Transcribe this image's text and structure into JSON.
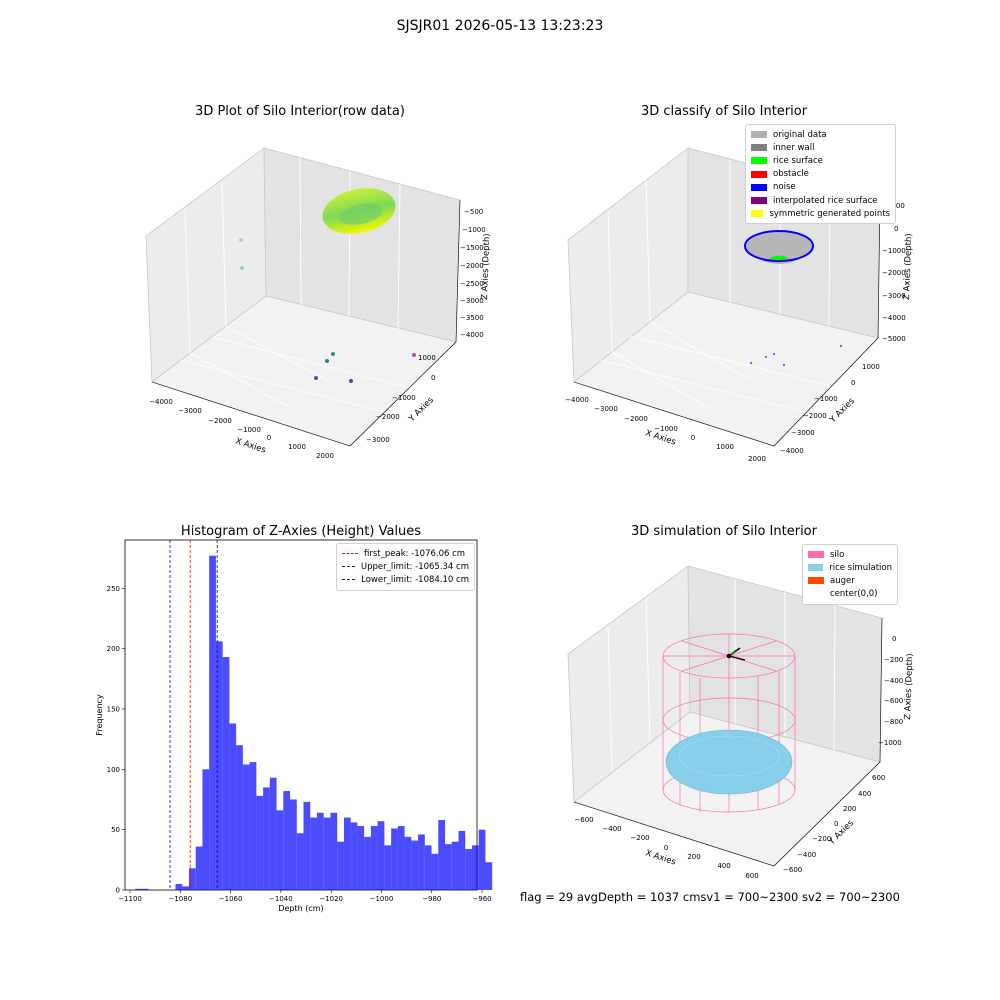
{
  "figure": {
    "suptitle": "SJSJR01 2026-05-13 13:23:23",
    "footer": "flag = 29  avgDepth = 1037 cmsv1 = 700~2300  sv2 = 700~2300"
  },
  "plot1": {
    "title": "3D Plot of Silo Interior(row data)",
    "xlabel": "X Axies",
    "ylabel": "Y Axies",
    "zlabel": "Z Axies (Depth)",
    "xticks": [
      "−4000",
      "−3000",
      "−2000",
      "−1000",
      "0",
      "1000",
      "2000"
    ],
    "yticks": [
      "1000",
      "0",
      "−1000",
      "−2000",
      "−3000"
    ],
    "zticks": [
      "−500",
      "−1000",
      "−1500",
      "−2000",
      "−2500",
      "−3000",
      "−3500",
      "−4000"
    ]
  },
  "plot2": {
    "title": "3D classify of Silo Interior",
    "xlabel": "X Axies",
    "ylabel": "Y Axies",
    "zlabel": "Z Axies (Depth)",
    "xticks": [
      "−4000",
      "−3000",
      "−2000",
      "−1000",
      "0",
      "1000",
      "2000"
    ],
    "yticks": [
      "1000",
      "0",
      "−1000",
      "−2000",
      "−3000",
      "−4000"
    ],
    "zticks": [
      "1000",
      "0",
      "−1000",
      "−2000",
      "−3000",
      "−4000",
      "−5000"
    ],
    "legend": [
      {
        "label": "original data",
        "color": "#b0b0b0"
      },
      {
        "label": "inner wall",
        "color": "#808080"
      },
      {
        "label": "rice surface",
        "color": "#00ff00"
      },
      {
        "label": "obstacle",
        "color": "#ff0000"
      },
      {
        "label": "noise",
        "color": "#0000ff"
      },
      {
        "label": "interpolated rice surface",
        "color": "#800080"
      },
      {
        "label": "symmetric generated points",
        "color": "#ffff00"
      }
    ]
  },
  "plot4": {
    "title": "3D simulation of Silo Interior",
    "xlabel": "X Axies",
    "ylabel": "Y Axies",
    "zlabel": "Z Axies (Depth)",
    "xticks": [
      "−600",
      "−400",
      "−200",
      "0",
      "200",
      "400",
      "600"
    ],
    "yticks": [
      "600",
      "400",
      "200",
      "0",
      "−200",
      "−400",
      "−600"
    ],
    "zticks": [
      "0",
      "−200",
      "−400",
      "−600",
      "−800",
      "−1000"
    ],
    "legend": [
      {
        "label": "silo",
        "color": "#ff69b4"
      },
      {
        "label": "rice simulation",
        "color": "#87ceeb"
      },
      {
        "label": "auger",
        "color": "#ff4500"
      },
      {
        "label": "center(0,0)",
        "color": ""
      }
    ]
  },
  "chart_data": {
    "type": "bar",
    "title": "Histogram of Z-Axies (Height) Values",
    "xlabel": "Depth (cm)",
    "ylabel": "Frequency",
    "xlim": [
      -1102,
      -962
    ],
    "ylim": [
      0,
      290
    ],
    "xticks": [
      -1100,
      -1080,
      -1060,
      -1040,
      -1020,
      -1000,
      -980,
      -960
    ],
    "yticks": [
      0,
      50,
      100,
      150,
      200,
      250
    ],
    "bin_start": -1098.0,
    "bin_width": 2.68,
    "values": [
      1,
      1,
      0,
      0,
      0,
      0,
      5,
      3,
      18,
      36,
      100,
      277,
      206,
      193,
      138,
      120,
      104,
      106,
      78,
      85,
      93,
      66,
      82,
      75,
      47,
      73,
      60,
      64,
      60,
      64,
      40,
      60,
      56,
      53,
      44,
      53,
      57,
      37,
      51,
      53,
      44,
      41,
      46,
      37,
      30,
      58,
      38,
      40,
      49,
      34,
      37,
      50,
      23
    ],
    "color": "#0000ff",
    "lines": [
      {
        "label": "first_peak: -1076.06 cm",
        "x": -1076.06,
        "color": "#ff0000"
      },
      {
        "label": "Upper_limit: -1065.34 cm",
        "x": -1065.34,
        "color": "#0000cc"
      },
      {
        "label": "Lower_limit: -1084.10 cm",
        "x": -1084.1,
        "color": "#0000cc"
      }
    ]
  }
}
